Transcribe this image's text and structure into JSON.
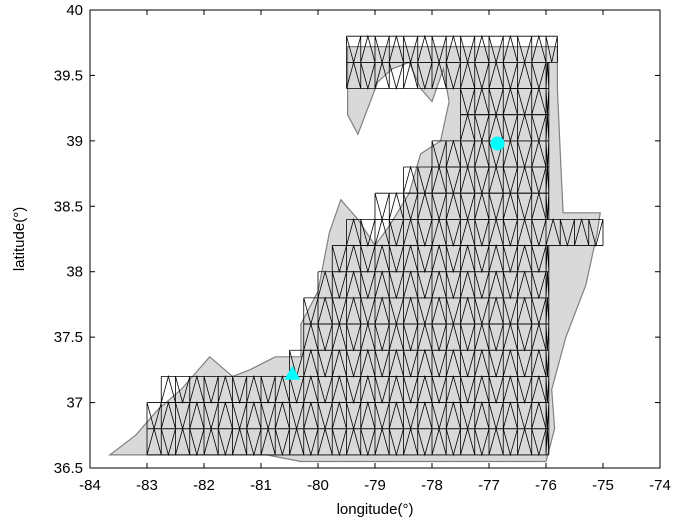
{
  "chart_data": {
    "type": "scatter",
    "title": "",
    "xlabel": "longitude(°)",
    "ylabel": "latitude(°)",
    "xlim": [
      -84,
      -74
    ],
    "ylim": [
      36.5,
      40
    ],
    "xticks": [
      -84,
      -83,
      -82,
      -81,
      -80,
      -79,
      -78,
      -77,
      -76,
      -75,
      -74
    ],
    "yticks": [
      36.5,
      37,
      37.5,
      38,
      38.5,
      39,
      39.5,
      40
    ],
    "grid": false,
    "legend": "none",
    "background_map": {
      "description_color": "#808080",
      "outline": [
        [
          -83.65,
          36.6
        ],
        [
          -82.6,
          36.6
        ],
        [
          -81.7,
          36.6
        ],
        [
          -80.9,
          36.6
        ],
        [
          -80.3,
          36.55
        ],
        [
          -79.5,
          36.55
        ],
        [
          -78.8,
          36.55
        ],
        [
          -78.1,
          36.55
        ],
        [
          -77.3,
          36.55
        ],
        [
          -76.6,
          36.55
        ],
        [
          -76.0,
          36.55
        ],
        [
          -75.85,
          36.8
        ],
        [
          -75.9,
          37.1
        ],
        [
          -75.65,
          37.5
        ],
        [
          -75.3,
          37.9
        ],
        [
          -75.1,
          38.3
        ],
        [
          -75.05,
          38.45
        ],
        [
          -75.3,
          38.45
        ],
        [
          -75.7,
          38.45
        ],
        [
          -75.75,
          38.9
        ],
        [
          -75.8,
          39.4
        ],
        [
          -75.8,
          39.72
        ],
        [
          -76.6,
          39.72
        ],
        [
          -77.5,
          39.72
        ],
        [
          -78.3,
          39.72
        ],
        [
          -79.0,
          39.72
        ],
        [
          -79.48,
          39.72
        ],
        [
          -79.48,
          39.2
        ],
        [
          -79.3,
          39.05
        ],
        [
          -78.95,
          39.45
        ],
        [
          -78.7,
          39.55
        ],
        [
          -78.4,
          39.6
        ],
        [
          -78.2,
          39.4
        ],
        [
          -78.0,
          39.3
        ],
        [
          -77.8,
          39.55
        ],
        [
          -77.7,
          39.3
        ],
        [
          -77.85,
          39.0
        ],
        [
          -78.2,
          38.9
        ],
        [
          -78.4,
          38.6
        ],
        [
          -78.75,
          38.35
        ],
        [
          -79.0,
          38.2
        ],
        [
          -79.3,
          38.4
        ],
        [
          -79.6,
          38.55
        ],
        [
          -79.8,
          38.3
        ],
        [
          -80.0,
          37.85
        ],
        [
          -80.3,
          37.6
        ],
        [
          -80.3,
          37.35
        ],
        [
          -80.75,
          37.35
        ],
        [
          -81.2,
          37.25
        ],
        [
          -81.5,
          37.2
        ],
        [
          -81.9,
          37.35
        ],
        [
          -82.4,
          37.1
        ],
        [
          -82.8,
          36.95
        ],
        [
          -83.2,
          36.75
        ],
        [
          -83.65,
          36.6
        ]
      ]
    },
    "series": [
      {
        "marker": "circle",
        "color": "#00ffff",
        "points": [
          {
            "x": -76.85,
            "y": 38.98
          }
        ]
      },
      {
        "marker": "triangle",
        "color": "#00ffff",
        "points": [
          {
            "x": -80.45,
            "y": 37.22
          }
        ]
      }
    ],
    "triangulated_mesh": {
      "color": "#000000",
      "cell_width_deg": 0.25,
      "row_height_deg": 0.2,
      "rows": [
        {
          "y0": 36.6,
          "x0": -83.0,
          "x1": -75.95
        },
        {
          "y0": 36.8,
          "x0": -83.0,
          "x1": -75.95
        },
        {
          "y0": 37.0,
          "x0": -82.75,
          "x1": -75.95
        },
        {
          "y0": 37.2,
          "x0": -80.5,
          "x1": -75.95
        },
        {
          "y0": 37.4,
          "x0": -80.25,
          "x1": -75.95
        },
        {
          "y0": 37.6,
          "x0": -80.25,
          "x1": -75.95
        },
        {
          "y0": 37.8,
          "x0": -80.0,
          "x1": -75.95
        },
        {
          "y0": 38.0,
          "x0": -79.75,
          "x1": -75.95
        },
        {
          "y0": 38.2,
          "x0": -79.5,
          "x1": -75.0
        },
        {
          "y0": 38.4,
          "x0": -79.0,
          "x1": -75.95
        },
        {
          "y0": 38.6,
          "x0": -78.5,
          "x1": -75.95
        },
        {
          "y0": 38.8,
          "x0": -78.0,
          "x1": -75.95
        },
        {
          "y0": 39.0,
          "x0": -77.5,
          "x1": -75.95
        },
        {
          "y0": 39.2,
          "x0": -77.5,
          "x1": -75.95
        },
        {
          "y0": 39.4,
          "x0": -79.5,
          "x1": -75.95
        },
        {
          "y0": 39.6,
          "x0": -79.5,
          "x1": -75.8
        }
      ]
    }
  }
}
